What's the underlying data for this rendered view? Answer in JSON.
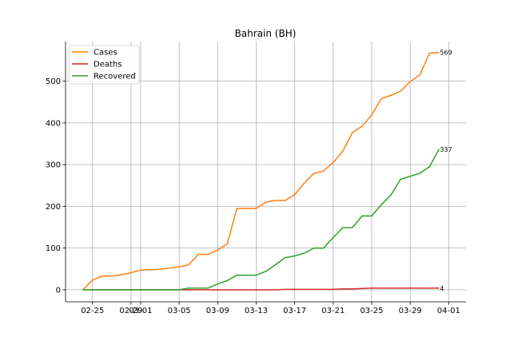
{
  "chart_data": {
    "type": "line",
    "title": "Bahrain (BH)",
    "xlabel": "",
    "ylabel": "",
    "x_ticks": [
      {
        "label": "02-25",
        "day": 1
      },
      {
        "label": "02-29",
        "day": 5
      },
      {
        "label": "03-01",
        "day": 6
      },
      {
        "label": "03-05",
        "day": 10
      },
      {
        "label": "03-09",
        "day": 14
      },
      {
        "label": "03-13",
        "day": 18
      },
      {
        "label": "03-17",
        "day": 22
      },
      {
        "label": "03-21",
        "day": 26
      },
      {
        "label": "03-25",
        "day": 30
      },
      {
        "label": "03-29",
        "day": 34
      },
      {
        "label": "04-01",
        "day": 38
      }
    ],
    "y_ticks": [
      0,
      100,
      200,
      300,
      400,
      500
    ],
    "xlim": [
      -1.8,
      39.8
    ],
    "ylim": [
      -29,
      595
    ],
    "grid": true,
    "legend_position": "top-left",
    "series": [
      {
        "name": "Cases",
        "color": "#ff7f0e",
        "end_label": "569",
        "values": [
          0,
          23,
          33,
          33,
          36,
          41,
          47,
          48,
          49,
          52,
          55,
          60,
          85,
          85,
          95,
          110,
          195,
          195,
          195,
          210,
          214,
          214,
          228,
          256,
          279,
          285,
          305,
          332,
          377,
          392,
          419,
          458,
          466,
          476,
          499,
          515,
          567,
          569
        ]
      },
      {
        "name": "Deaths",
        "color": "#d62728",
        "end_label": "4",
        "values": [
          0,
          0,
          0,
          0,
          0,
          0,
          0,
          0,
          0,
          0,
          0,
          0,
          0,
          0,
          0,
          0,
          0,
          0,
          0,
          0,
          0,
          1,
          1,
          1,
          1,
          1,
          1,
          2,
          2,
          3,
          4,
          4,
          4,
          4,
          4,
          4,
          4,
          4
        ]
      },
      {
        "name": "Recovered",
        "color": "#2ca02c",
        "end_label": "337",
        "values": [
          0,
          0,
          0,
          0,
          0,
          0,
          0,
          0,
          0,
          0,
          0,
          4,
          4,
          4,
          14,
          22,
          35,
          35,
          35,
          44,
          60,
          77,
          81,
          88,
          100,
          100,
          125,
          149,
          149,
          177,
          177,
          204,
          227,
          265,
          272,
          279,
          295,
          337
        ]
      }
    ]
  }
}
